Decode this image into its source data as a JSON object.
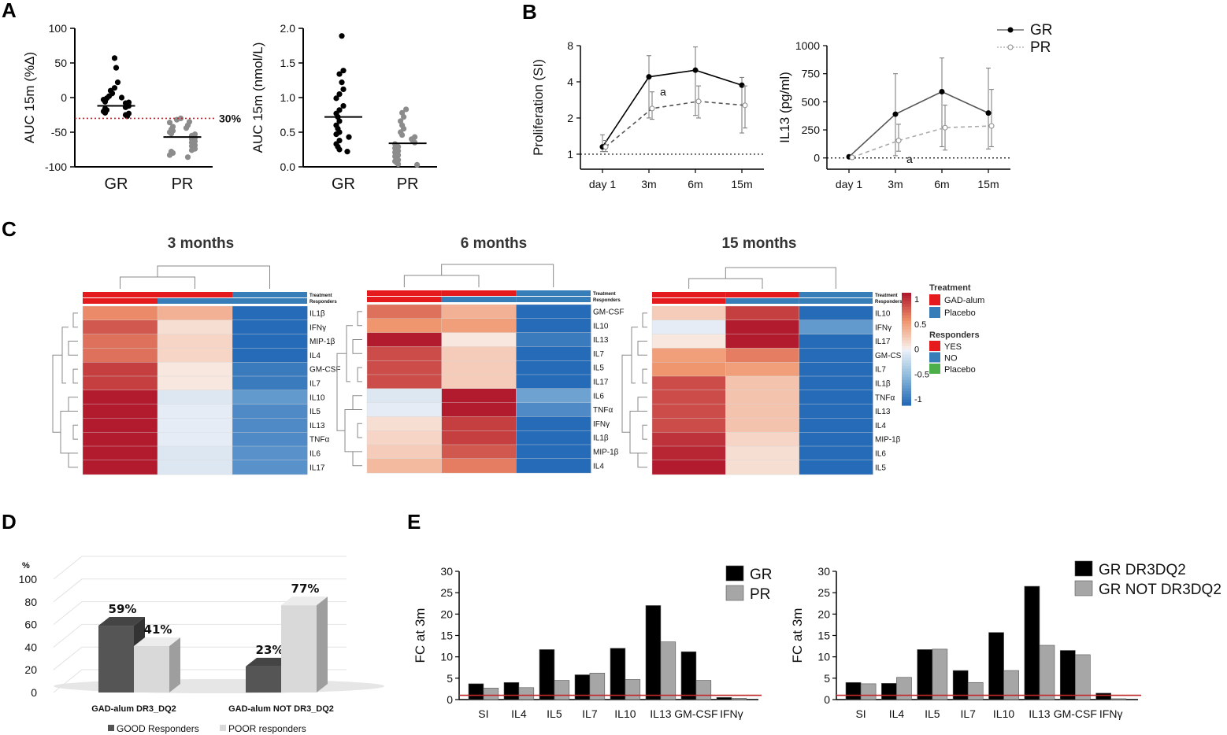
{
  "panel_letters": {
    "a": "A",
    "b": "B",
    "c": "C",
    "d": "D",
    "e": "E"
  },
  "chart_data": [
    {
      "id": "A1",
      "type": "scatter",
      "ylabel": "AUC 15m (%Δ)",
      "ylim": [
        -100,
        100
      ],
      "yticks": [
        -100,
        -50,
        0,
        50,
        100
      ],
      "categories": [
        "GR",
        "PR"
      ],
      "points": {
        "GR": [
          57,
          43,
          22,
          14,
          10,
          6,
          2,
          0,
          -1,
          -3,
          -6,
          -7,
          -8,
          -10,
          -12,
          -14,
          -16,
          -18,
          -20,
          -22,
          -23,
          -25,
          -27
        ],
        "PR": [
          -30,
          -32,
          -35,
          -36,
          -40,
          -42,
          -44,
          -46,
          -48,
          -50,
          -52,
          -53,
          -55,
          -57,
          -58,
          -60,
          -62,
          -63,
          -65,
          -67,
          -69,
          -70,
          -72,
          -74,
          -76,
          -78,
          -80,
          -83,
          -86
        ]
      },
      "means": {
        "GR": -12,
        "PR": -57
      },
      "threshold": {
        "value": -30,
        "label": "30%",
        "color": "#c0282d"
      },
      "colors": {
        "GR": "#000000",
        "PR": "#8c8c8c"
      }
    },
    {
      "id": "A2",
      "type": "scatter",
      "ylabel": "AUC 15m (nmol/L)",
      "ylim": [
        0.0,
        2.0
      ],
      "yticks": [
        0.0,
        0.5,
        1.0,
        1.5,
        2.0
      ],
      "ytick_labels": [
        "0.0",
        "0.5",
        "1.0",
        "1.5",
        "2.0"
      ],
      "categories": [
        "GR",
        "PR"
      ],
      "points": {
        "GR": [
          1.89,
          1.39,
          1.34,
          1.22,
          1.12,
          1.05,
          0.99,
          0.88,
          0.82,
          0.77,
          0.72,
          0.66,
          0.6,
          0.55,
          0.5,
          0.47,
          0.43,
          0.38,
          0.33,
          0.29,
          0.25,
          0.22
        ],
        "PR": [
          0.83,
          0.78,
          0.72,
          0.66,
          0.6,
          0.55,
          0.5,
          0.46,
          0.43,
          0.4,
          0.37,
          0.35,
          0.33,
          0.31,
          0.29,
          0.27,
          0.25,
          0.23,
          0.21,
          0.19,
          0.17,
          0.15,
          0.12,
          0.1,
          0.08,
          0.06,
          0.04,
          0.03
        ]
      },
      "means": {
        "GR": 0.72,
        "PR": 0.34
      },
      "colors": {
        "GR": "#000000",
        "PR": "#8c8c8c"
      }
    },
    {
      "id": "B1",
      "type": "line",
      "ylabel": "Proliferation (SI)",
      "yticks": [
        1,
        2,
        4,
        8
      ],
      "ytick_labels": [
        "1",
        "2",
        "4",
        "8"
      ],
      "ylim": [
        0.75,
        8
      ],
      "categories": [
        "day 1",
        "3m",
        "6m",
        "15m"
      ],
      "series": [
        {
          "name": "GR",
          "values": [
            1.15,
            4.4,
            5.0,
            3.75
          ],
          "err_low": [
            1.05,
            2.0,
            2.1,
            1.5
          ],
          "err_high": [
            1.45,
            6.6,
            7.8,
            4.35
          ],
          "color": "#000000",
          "marker": "filled"
        },
        {
          "name": "PR",
          "values": [
            1.15,
            2.4,
            2.75,
            2.55
          ],
          "err_low": [
            1.05,
            1.95,
            2.0,
            1.65
          ],
          "err_high": [
            1.3,
            3.3,
            3.7,
            3.7
          ],
          "color": "#555555",
          "marker": "open"
        }
      ],
      "reference_line": 1,
      "annotation": "a"
    },
    {
      "id": "B2",
      "type": "line",
      "ylabel": "IL13 (pg/ml)",
      "ylim": [
        -100,
        1000
      ],
      "yticks": [
        0,
        250,
        500,
        750,
        1000
      ],
      "ytick_labels": [
        "0",
        "250",
        "500",
        "750",
        "1000"
      ],
      "categories": [
        "day 1",
        "3m",
        "6m",
        "15m"
      ],
      "series": [
        {
          "name": "GR",
          "values": [
            10,
            390,
            590,
            400
          ],
          "err_low": [
            0,
            20,
            100,
            80
          ],
          "err_high": [
            25,
            750,
            890,
            800
          ],
          "color": "#555555",
          "marker": "filled"
        },
        {
          "name": "PR",
          "values": [
            5,
            155,
            270,
            285
          ],
          "err_low": [
            0,
            60,
            70,
            100
          ],
          "err_high": [
            15,
            300,
            470,
            610
          ],
          "color": "#aaaaaa",
          "marker": "open"
        }
      ],
      "reference_line": 0,
      "annotation": "a",
      "legend": [
        "GR",
        "PR"
      ]
    },
    {
      "id": "C",
      "type": "heatmap",
      "color_scale": {
        "min": -1,
        "max": 1,
        "ticks": [
          "1",
          "0.5",
          "0",
          "-0.5",
          "-1"
        ]
      },
      "column_annotation_labels": [
        "Treatment",
        "Responders"
      ],
      "legend": {
        "treatment_title": "Treatment",
        "treatment": [
          {
            "label": "GAD-alum",
            "color": "#e41a1c"
          },
          {
            "label": "Placebo",
            "color": "#377eb8"
          }
        ],
        "responders_title": "Responders",
        "responders": [
          {
            "label": "YES",
            "color": "#e41a1c"
          },
          {
            "label": "NO",
            "color": "#377eb8"
          },
          {
            "label": "Placebo",
            "color": "#4daf4a"
          }
        ]
      },
      "panels": [
        {
          "title": "3 months",
          "treatment": [
            "GAD-alum",
            "GAD-alum",
            "Placebo"
          ],
          "responders": [
            "YES",
            "NO",
            "Placebo"
          ],
          "rows": [
            "IL1β",
            "IFNγ",
            "MIP-1β",
            "IL4",
            "GM-CSF",
            "IL7",
            "IL10",
            "IL5",
            "IL13",
            "TNFα",
            "IL6",
            "IL17"
          ],
          "values": [
            [
              0.55,
              0.35,
              -1.0
            ],
            [
              0.75,
              0.1,
              -1.0
            ],
            [
              0.65,
              0.15,
              -1.0
            ],
            [
              0.65,
              0.15,
              -1.0
            ],
            [
              0.85,
              0.05,
              -0.9
            ],
            [
              0.85,
              0.05,
              -0.9
            ],
            [
              1.0,
              -0.1,
              -0.7
            ],
            [
              1.0,
              -0.05,
              -0.8
            ],
            [
              1.0,
              -0.05,
              -0.8
            ],
            [
              1.0,
              -0.05,
              -0.8
            ],
            [
              1.0,
              -0.1,
              -0.75
            ],
            [
              1.0,
              -0.1,
              -0.75
            ]
          ]
        },
        {
          "title": "6 months",
          "treatment": [
            "GAD-alum",
            "GAD-alum",
            "Placebo"
          ],
          "responders": [
            "YES",
            "NO",
            "Placebo"
          ],
          "rows": [
            "GM-CSF",
            "IL10",
            "IL13",
            "IL7",
            "IL5",
            "IL17",
            "IL6",
            "TNFα",
            "IFNγ",
            "IL1β",
            "MIP-1β",
            "IL4"
          ],
          "values": [
            [
              0.65,
              0.35,
              -1.0
            ],
            [
              0.5,
              0.45,
              -1.0
            ],
            [
              1.0,
              0.05,
              -0.9
            ],
            [
              0.8,
              0.2,
              -1.0
            ],
            [
              0.8,
              0.2,
              -1.0
            ],
            [
              0.8,
              0.2,
              -1.0
            ],
            [
              -0.1,
              1.1,
              -0.65
            ],
            [
              -0.05,
              1.05,
              -0.8
            ],
            [
              0.1,
              0.85,
              -1.0
            ],
            [
              0.15,
              0.85,
              -1.0
            ],
            [
              0.2,
              0.75,
              -1.0
            ],
            [
              0.3,
              0.6,
              -1.0
            ]
          ]
        },
        {
          "title": "15 months",
          "treatment": [
            "GAD-alum",
            "GAD-alum",
            "Placebo"
          ],
          "responders": [
            "YES",
            "NO",
            "Placebo"
          ],
          "rows": [
            "IL10",
            "IFNγ",
            "IL17",
            "GM-CSI",
            "IL7",
            "IL1β",
            "TNFα",
            "IL13",
            "IL4",
            "MIP-1β",
            "IL6",
            "IL5"
          ],
          "values": [
            [
              0.2,
              0.85,
              -1.0
            ],
            [
              -0.05,
              1.1,
              -0.7
            ],
            [
              0.05,
              1.1,
              -1.0
            ],
            [
              0.45,
              0.6,
              -1.0
            ],
            [
              0.5,
              0.45,
              -1.0
            ],
            [
              0.8,
              0.25,
              -1.0
            ],
            [
              0.8,
              0.25,
              -1.0
            ],
            [
              0.8,
              0.25,
              -1.0
            ],
            [
              0.8,
              0.25,
              -1.0
            ],
            [
              0.9,
              0.15,
              -1.0
            ],
            [
              0.95,
              0.1,
              -1.0
            ],
            [
              1.0,
              0.1,
              -1.0
            ]
          ]
        }
      ]
    },
    {
      "id": "D",
      "type": "bar",
      "ylabel": "%",
      "ylim": [
        0,
        100
      ],
      "yticks": [
        0,
        20,
        40,
        60,
        80,
        100
      ],
      "categories": [
        "GAD-alum DR3_DQ2",
        "GAD-alum NOT DR3_DQ2"
      ],
      "series": [
        {
          "name": "GOOD Responders",
          "values": [
            59,
            23
          ],
          "labels": [
            "59%",
            "23%"
          ],
          "color": "#555555"
        },
        {
          "name": "POOR responders",
          "values": [
            41,
            77
          ],
          "labels": [
            "41%",
            "77%"
          ],
          "color": "#d9d9d9"
        }
      ]
    },
    {
      "id": "E1",
      "type": "bar",
      "ylabel": "FC at 3m",
      "ylim": [
        0,
        30
      ],
      "yticks": [
        0,
        5,
        10,
        15,
        20,
        25,
        30
      ],
      "categories": [
        "SI",
        "IL4",
        "IL5",
        "IL7",
        "IL10",
        "IL13",
        "GM-CSF",
        "IFNγ"
      ],
      "series": [
        {
          "name": "GR",
          "values": [
            3.7,
            4.0,
            11.7,
            5.8,
            12.0,
            22.0,
            11.2,
            0.5
          ],
          "color": "#000000"
        },
        {
          "name": "PR",
          "values": [
            2.7,
            2.8,
            4.5,
            6.2,
            4.7,
            13.5,
            4.5,
            0.3
          ],
          "color": "#a6a6a6"
        }
      ],
      "reference_line": 1
    },
    {
      "id": "E2",
      "type": "bar",
      "ylabel": "FC at 3m",
      "ylim": [
        0,
        30
      ],
      "yticks": [
        0,
        5,
        10,
        15,
        20,
        25,
        30
      ],
      "categories": [
        "SI",
        "IL4",
        "IL5",
        "IL7",
        "IL10",
        "IL13",
        "GM-CSF",
        "IFNγ"
      ],
      "series": [
        {
          "name": "GR DR3DQ2",
          "values": [
            4.0,
            3.8,
            11.7,
            6.8,
            15.7,
            26.5,
            11.5,
            1.5
          ],
          "color": "#000000"
        },
        {
          "name": "GR NOT DR3DQ2",
          "values": [
            3.7,
            5.2,
            11.8,
            4.0,
            6.8,
            12.7,
            10.5,
            0.2
          ],
          "color": "#a6a6a6"
        }
      ],
      "reference_line": 1
    }
  ]
}
